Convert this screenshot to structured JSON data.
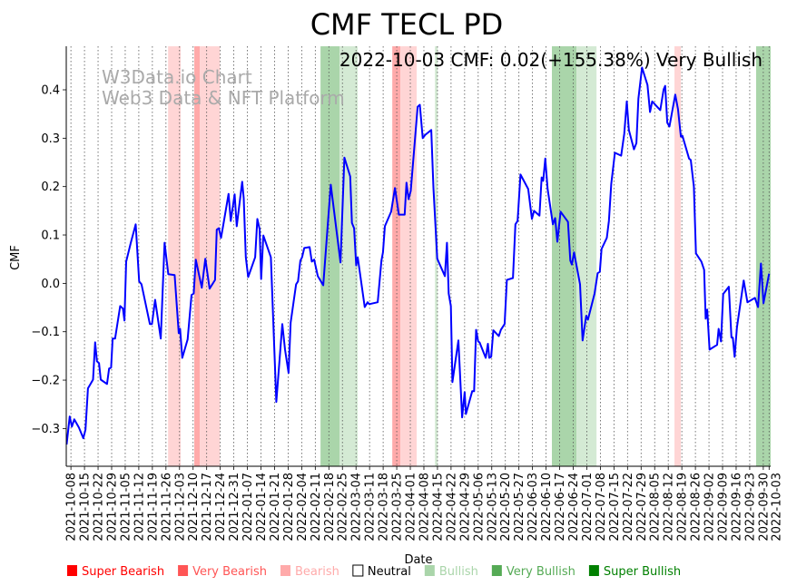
{
  "chart_data": {
    "type": "line",
    "title": "CMF TECL PD",
    "xlabel": "Date",
    "ylabel": "CMF",
    "annotation": "2022-10-03 CMF: 0.02(+155.38%) Very Bullish",
    "watermark": [
      "W3Data.io Chart",
      "Web3 Data & NFT Platform"
    ],
    "x_origin_date": "2021-10-08",
    "x_unit": "days since 2021-10-08",
    "xlim": [
      -2.4,
      360.8
    ],
    "ylim": [
      -0.378,
      0.49
    ],
    "yticks": [
      -0.3,
      -0.2,
      -0.1,
      0.0,
      0.1,
      0.2,
      0.3,
      0.4
    ],
    "ytick_labels": [
      "−0.3",
      "−0.2",
      "−0.1",
      "0.0",
      "0.1",
      "0.2",
      "0.3",
      "0.4"
    ],
    "xtick_labels": [
      "2021-10-08",
      "2021-10-15",
      "2021-10-22",
      "2021-10-29",
      "2021-11-05",
      "2021-11-12",
      "2021-11-19",
      "2021-11-26",
      "2021-12-03",
      "2021-12-10",
      "2021-12-17",
      "2021-12-24",
      "2021-12-31",
      "2022-01-07",
      "2022-01-14",
      "2022-01-21",
      "2022-01-28",
      "2022-02-04",
      "2022-02-11",
      "2022-02-18",
      "2022-02-25",
      "2022-03-04",
      "2022-03-11",
      "2022-03-18",
      "2022-03-25",
      "2022-04-01",
      "2022-04-08",
      "2022-04-15",
      "2022-04-22",
      "2022-04-29",
      "2022-05-06",
      "2022-05-13",
      "2022-05-20",
      "2022-05-27",
      "2022-06-03",
      "2022-06-10",
      "2022-06-17",
      "2022-06-24",
      "2022-07-01",
      "2022-07-08",
      "2022-07-15",
      "2022-07-22",
      "2022-07-29",
      "2022-08-05",
      "2022-08-12",
      "2022-08-19",
      "2022-08-26",
      "2022-09-02",
      "2022-09-09",
      "2022-09-16",
      "2022-09-23",
      "2022-09-30",
      "2022-10-03"
    ],
    "xtick_days": [
      0,
      7,
      14,
      21,
      28,
      35,
      42,
      49,
      56,
      63,
      70,
      77,
      84,
      91,
      98,
      105,
      112,
      119,
      126,
      133,
      140,
      147,
      154,
      161,
      168,
      175,
      182,
      189,
      196,
      203,
      210,
      217,
      224,
      231,
      238,
      245,
      252,
      259,
      266,
      273,
      280,
      287,
      294,
      301,
      308,
      315,
      322,
      329,
      336,
      343,
      350,
      357,
      360
    ],
    "grid": "vertical dotted",
    "line_color": "#0000ff",
    "series": [
      {
        "name": "CMF",
        "points": [
          [
            -2.2,
            -0.333
          ],
          [
            -0.6,
            -0.275
          ],
          [
            0.5,
            -0.296
          ],
          [
            1.7,
            -0.281
          ],
          [
            4.1,
            -0.298
          ],
          [
            6.4,
            -0.32
          ],
          [
            7.5,
            -0.302
          ],
          [
            8.8,
            -0.217
          ],
          [
            11.4,
            -0.199
          ],
          [
            12.5,
            -0.122
          ],
          [
            13.4,
            -0.161
          ],
          [
            14.5,
            -0.165
          ],
          [
            15.4,
            -0.199
          ],
          [
            18.6,
            -0.208
          ],
          [
            19.7,
            -0.176
          ],
          [
            20.7,
            -0.174
          ],
          [
            21.5,
            -0.114
          ],
          [
            22.8,
            -0.114
          ],
          [
            25.4,
            -0.047
          ],
          [
            26.8,
            -0.052
          ],
          [
            27.6,
            -0.077
          ],
          [
            28.5,
            0.045
          ],
          [
            30.9,
            0.084
          ],
          [
            33.4,
            0.122
          ],
          [
            35.2,
            0.004
          ],
          [
            36.4,
            -0.002
          ],
          [
            40.7,
            -0.084
          ],
          [
            41.8,
            -0.084
          ],
          [
            43.4,
            -0.034
          ],
          [
            46.3,
            -0.114
          ],
          [
            48.3,
            0.084
          ],
          [
            50.2,
            0.019
          ],
          [
            53.5,
            0.017
          ],
          [
            55.6,
            -0.103
          ],
          [
            56.3,
            -0.094
          ],
          [
            57.4,
            -0.154
          ],
          [
            60.2,
            -0.116
          ],
          [
            62.2,
            -0.024
          ],
          [
            63.3,
            -0.021
          ],
          [
            64.4,
            0.049
          ],
          [
            67.5,
            -0.009
          ],
          [
            69.3,
            0.051
          ],
          [
            71.5,
            -0.011
          ],
          [
            74.3,
            0.007
          ],
          [
            75.2,
            0.111
          ],
          [
            76.3,
            0.114
          ],
          [
            77.4,
            0.094
          ],
          [
            78.6,
            0.122
          ],
          [
            81.3,
            0.185
          ],
          [
            82.4,
            0.129
          ],
          [
            84.4,
            0.184
          ],
          [
            85.5,
            0.118
          ],
          [
            88.3,
            0.21
          ],
          [
            89.1,
            0.176
          ],
          [
            90.2,
            0.054
          ],
          [
            91.4,
            0.013
          ],
          [
            95.0,
            0.054
          ],
          [
            96.1,
            0.133
          ],
          [
            97.3,
            0.112
          ],
          [
            98.1,
            0.009
          ],
          [
            99.2,
            0.099
          ],
          [
            103.1,
            0.054
          ],
          [
            105.9,
            -0.245
          ],
          [
            109.0,
            -0.084
          ],
          [
            110.4,
            -0.137
          ],
          [
            112.2,
            -0.185
          ],
          [
            113.3,
            -0.081
          ],
          [
            116.1,
            -0.002
          ],
          [
            117.1,
            0.004
          ],
          [
            118.3,
            0.047
          ],
          [
            119.2,
            0.054
          ],
          [
            120.3,
            0.073
          ],
          [
            123.1,
            0.075
          ],
          [
            124.2,
            0.045
          ],
          [
            125.4,
            0.049
          ],
          [
            127.3,
            0.015
          ],
          [
            130.1,
            -0.004
          ],
          [
            134.0,
            0.204
          ],
          [
            139.0,
            0.043
          ],
          [
            141.0,
            0.26
          ],
          [
            144.0,
            0.221
          ],
          [
            144.9,
            0.125
          ],
          [
            146.0,
            0.114
          ],
          [
            147.1,
            0.037
          ],
          [
            147.9,
            0.054
          ],
          [
            151.5,
            -0.049
          ],
          [
            153.0,
            -0.039
          ],
          [
            153.8,
            -0.043
          ],
          [
            158.2,
            -0.039
          ],
          [
            160.1,
            0.047
          ],
          [
            160.9,
            0.064
          ],
          [
            161.9,
            0.118
          ],
          [
            165.1,
            0.148
          ],
          [
            167.1,
            0.197
          ],
          [
            169.1,
            0.142
          ],
          [
            172.1,
            0.142
          ],
          [
            173.0,
            0.208
          ],
          [
            174.1,
            0.174
          ],
          [
            175.2,
            0.191
          ],
          [
            178.8,
            0.365
          ],
          [
            179.9,
            0.369
          ],
          [
            181.4,
            0.3
          ],
          [
            182.7,
            0.307
          ],
          [
            185.8,
            0.317
          ],
          [
            186.9,
            0.197
          ],
          [
            188.9,
            0.051
          ],
          [
            192.8,
            0.015
          ],
          [
            193.9,
            0.084
          ],
          [
            194.8,
            -0.021
          ],
          [
            195.9,
            -0.047
          ],
          [
            196.7,
            -0.204
          ],
          [
            199.8,
            -0.118
          ],
          [
            201.7,
            -0.277
          ],
          [
            203.0,
            -0.225
          ],
          [
            203.7,
            -0.27
          ],
          [
            206.9,
            -0.223
          ],
          [
            207.9,
            -0.223
          ],
          [
            208.9,
            -0.096
          ],
          [
            210.0,
            -0.12
          ],
          [
            210.7,
            -0.122
          ],
          [
            213.9,
            -0.154
          ],
          [
            215.0,
            -0.125
          ],
          [
            215.7,
            -0.154
          ],
          [
            216.7,
            -0.152
          ],
          [
            217.8,
            -0.097
          ],
          [
            220.6,
            -0.109
          ],
          [
            221.7,
            -0.096
          ],
          [
            223.6,
            -0.084
          ],
          [
            224.8,
            0.007
          ],
          [
            227.9,
            0.011
          ],
          [
            229.2,
            0.122
          ],
          [
            230.3,
            0.129
          ],
          [
            231.8,
            0.225
          ],
          [
            235.8,
            0.195
          ],
          [
            237.7,
            0.133
          ],
          [
            238.8,
            0.15
          ],
          [
            241.6,
            0.14
          ],
          [
            242.7,
            0.219
          ],
          [
            243.5,
            0.212
          ],
          [
            244.6,
            0.258
          ],
          [
            245.8,
            0.195
          ],
          [
            248.5,
            0.122
          ],
          [
            249.7,
            0.135
          ],
          [
            250.8,
            0.086
          ],
          [
            252.5,
            0.148
          ],
          [
            256.3,
            0.127
          ],
          [
            257.5,
            0.047
          ],
          [
            258.3,
            0.039
          ],
          [
            259.4,
            0.064
          ],
          [
            262.5,
            -0.002
          ],
          [
            263.8,
            -0.118
          ],
          [
            265.7,
            -0.067
          ],
          [
            266.6,
            -0.075
          ],
          [
            270.0,
            -0.021
          ],
          [
            271.6,
            0.021
          ],
          [
            272.7,
            0.024
          ],
          [
            273.6,
            0.071
          ],
          [
            276.3,
            0.094
          ],
          [
            277.4,
            0.129
          ],
          [
            278.6,
            0.206
          ],
          [
            280.5,
            0.27
          ],
          [
            283.7,
            0.264
          ],
          [
            285.3,
            0.309
          ],
          [
            286.6,
            0.376
          ],
          [
            287.7,
            0.317
          ],
          [
            290.3,
            0.277
          ],
          [
            291.6,
            0.29
          ],
          [
            292.6,
            0.382
          ],
          [
            294.5,
            0.446
          ],
          [
            297.3,
            0.41
          ],
          [
            298.6,
            0.354
          ],
          [
            299.7,
            0.376
          ],
          [
            303.9,
            0.358
          ],
          [
            305.6,
            0.401
          ],
          [
            306.4,
            0.408
          ],
          [
            307.5,
            0.332
          ],
          [
            308.6,
            0.324
          ],
          [
            311.6,
            0.39
          ],
          [
            313.0,
            0.36
          ],
          [
            314.5,
            0.303
          ],
          [
            315.3,
            0.305
          ],
          [
            318.7,
            0.258
          ],
          [
            319.6,
            0.255
          ],
          [
            321.2,
            0.2
          ],
          [
            322.3,
            0.062
          ],
          [
            325.1,
            0.045
          ],
          [
            326.5,
            0.028
          ],
          [
            327.3,
            -0.073
          ],
          [
            328.1,
            -0.054
          ],
          [
            329.3,
            -0.137
          ],
          [
            333.2,
            -0.127
          ],
          [
            334.0,
            -0.094
          ],
          [
            335.2,
            -0.12
          ],
          [
            336.3,
            -0.022
          ],
          [
            339.2,
            -0.007
          ],
          [
            340.6,
            -0.112
          ],
          [
            341.3,
            -0.112
          ],
          [
            342.2,
            -0.152
          ],
          [
            343.4,
            -0.092
          ],
          [
            346.9,
            0.006
          ],
          [
            348.8,
            -0.039
          ],
          [
            352.7,
            -0.03
          ],
          [
            354.3,
            -0.049
          ],
          [
            355.8,
            0.041
          ],
          [
            357.1,
            -0.041
          ],
          [
            360.0,
            0.02
          ]
        ]
      }
    ],
    "bands": [
      {
        "start": 50.1,
        "end": 56.6,
        "level": "Bearish"
      },
      {
        "start": 63.6,
        "end": 66.5,
        "level": "Very Bearish"
      },
      {
        "start": 66.5,
        "end": 76.8,
        "level": "Bearish"
      },
      {
        "start": 128.7,
        "end": 138.5,
        "level": "Very Bullish"
      },
      {
        "start": 138.5,
        "end": 147.9,
        "level": "Bullish"
      },
      {
        "start": 165.7,
        "end": 169.9,
        "level": "Very Bearish"
      },
      {
        "start": 169.9,
        "end": 178.3,
        "level": "Bearish"
      },
      {
        "start": 187.7,
        "end": 189.1,
        "level": "Bullish"
      },
      {
        "start": 248.0,
        "end": 260.7,
        "level": "Very Bullish"
      },
      {
        "start": 260.7,
        "end": 271.0,
        "level": "Bullish"
      },
      {
        "start": 311.2,
        "end": 314.5,
        "level": "Bearish"
      },
      {
        "start": 353.3,
        "end": 360.8,
        "level": "Very Bullish"
      }
    ],
    "band_colors": {
      "Very Bearish": "#ffaaaa",
      "Bearish": "#ffd5d5",
      "Bullish": "#d4ead4",
      "Very Bullish": "#aad5aa"
    },
    "legend": [
      {
        "label": "Super Bearish",
        "color": "#ff0000",
        "text_color": "#ff0000"
      },
      {
        "label": "Very Bearish",
        "color": "#ff5555",
        "text_color": "#ff5555"
      },
      {
        "label": "Bearish",
        "color": "#ffaaaa",
        "text_color": "#ffaaaa"
      },
      {
        "label": "Neutral",
        "color": "#ffffff",
        "text_color": "#000000"
      },
      {
        "label": "Bullish",
        "color": "#aad5aa",
        "text_color": "#aad5aa"
      },
      {
        "label": "Very Bullish",
        "color": "#55aa55",
        "text_color": "#55aa55"
      },
      {
        "label": "Super Bullish",
        "color": "#008000",
        "text_color": "#008000"
      }
    ],
    "legend_placement": "bottom"
  }
}
